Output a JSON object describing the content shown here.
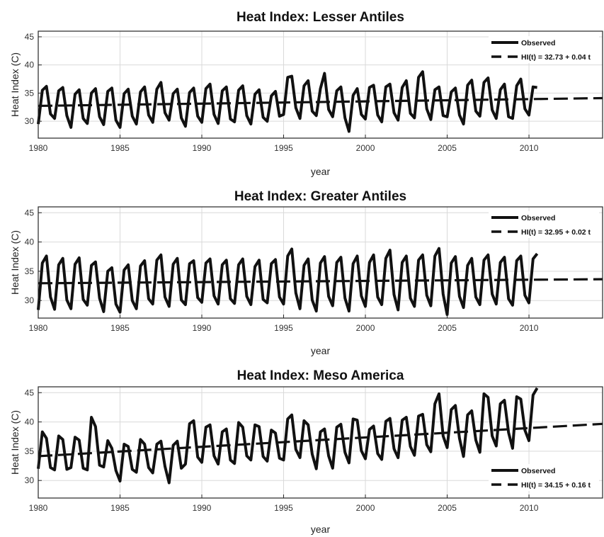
{
  "chart_data": [
    {
      "type": "line",
      "title": "Heat Index: Lesser Antiles",
      "xlabel": "year",
      "ylabel": "Heat Index (C)",
      "xlim": [
        1980,
        2014.5
      ],
      "ylim": [
        27,
        46
      ],
      "xticks": [
        1980,
        1985,
        1990,
        1995,
        2000,
        2005,
        2010
      ],
      "yticks": [
        30,
        35,
        40,
        45
      ],
      "grid": true,
      "legend_position": "top-right",
      "series": [
        {
          "name": "Observed",
          "style": "solid",
          "x_start": 1980,
          "step": 0.25,
          "values": [
            29.5,
            35.5,
            36.2,
            31.3,
            30.5,
            35.4,
            36.0,
            31.0,
            28.9,
            34.8,
            35.6,
            30.5,
            29.6,
            35.0,
            35.8,
            30.8,
            29.4,
            35.3,
            35.9,
            30.2,
            28.9,
            34.9,
            35.7,
            30.9,
            29.5,
            35.2,
            36.1,
            31.1,
            29.8,
            35.7,
            36.9,
            31.5,
            30.2,
            34.9,
            35.7,
            30.6,
            29.1,
            35.1,
            35.9,
            30.9,
            29.8,
            35.8,
            36.6,
            31.2,
            29.6,
            35.4,
            36.1,
            30.4,
            29.9,
            35.5,
            36.3,
            31.0,
            29.5,
            34.8,
            35.6,
            30.7,
            30.0,
            34.5,
            35.3,
            30.9,
            31.2,
            37.8,
            38.0,
            32.4,
            30.5,
            36.3,
            37.2,
            31.8,
            31.0,
            35.8,
            38.5,
            32.1,
            30.8,
            35.4,
            36.1,
            30.6,
            28.2,
            34.6,
            35.8,
            31.2,
            30.4,
            36.0,
            36.4,
            31.1,
            29.9,
            36.1,
            36.6,
            31.5,
            30.2,
            36.0,
            37.2,
            31.4,
            30.6,
            37.8,
            38.8,
            32.2,
            30.3,
            35.6,
            36.1,
            31.0,
            30.8,
            35.2,
            35.9,
            31.1,
            29.5,
            36.4,
            37.3,
            31.8,
            30.9,
            36.9,
            37.7,
            32.0,
            30.5,
            35.6,
            36.6,
            30.8,
            30.5,
            36.3,
            37.5,
            32.2,
            31.1,
            36.1,
            36.0
          ]
        },
        {
          "name": "HI(t) = 32.73 + 0.04 t",
          "style": "dashed",
          "x": [
            1980,
            2014.5
          ],
          "values": [
            32.73,
            34.11
          ]
        }
      ]
    },
    {
      "type": "line",
      "title": "Heat Index: Greater Antiles",
      "xlabel": "year",
      "ylabel": "Heat Index (C)",
      "xlim": [
        1980,
        2014.5
      ],
      "ylim": [
        27,
        46
      ],
      "xticks": [
        1980,
        1985,
        1990,
        1995,
        2000,
        2005,
        2010
      ],
      "yticks": [
        30,
        35,
        40,
        45
      ],
      "grid": true,
      "legend_position": "top-right",
      "series": [
        {
          "name": "Observed",
          "style": "solid",
          "x_start": 1980,
          "step": 0.25,
          "values": [
            28.4,
            36.4,
            37.6,
            30.6,
            28.5,
            36.1,
            37.2,
            30.1,
            28.6,
            36.2,
            37.3,
            30.2,
            29.2,
            36.0,
            36.6,
            30.4,
            28.1,
            35.0,
            35.6,
            29.4,
            28.0,
            35.2,
            36.1,
            30.0,
            28.6,
            35.9,
            36.8,
            30.3,
            29.4,
            36.9,
            37.8,
            30.6,
            29.0,
            36.2,
            37.2,
            30.1,
            29.3,
            36.3,
            36.8,
            30.5,
            29.7,
            36.4,
            37.1,
            30.8,
            29.4,
            36.1,
            36.9,
            30.3,
            29.5,
            36.1,
            37.1,
            30.7,
            29.3,
            35.8,
            36.9,
            30.2,
            29.6,
            36.3,
            37.0,
            30.6,
            29.4,
            37.6,
            38.8,
            31.3,
            28.6,
            36.0,
            37.1,
            30.1,
            28.2,
            36.4,
            37.5,
            30.7,
            29.1,
            36.5,
            37.4,
            30.4,
            28.2,
            36.3,
            37.6,
            30.8,
            29.0,
            36.5,
            37.8,
            30.6,
            29.3,
            37.2,
            38.6,
            31.0,
            28.4,
            36.5,
            37.6,
            30.4,
            29.0,
            36.9,
            37.8,
            30.9,
            29.1,
            37.6,
            38.9,
            31.1,
            27.6,
            36.4,
            37.5,
            30.7,
            28.8,
            36.0,
            37.2,
            30.6,
            29.3,
            36.9,
            37.8,
            31.1,
            29.4,
            36.5,
            37.4,
            30.3,
            29.2,
            36.8,
            37.6,
            30.9,
            29.6,
            37.1,
            38.0
          ]
        },
        {
          "name": "HI(t) = 32.95 + 0.02 t",
          "style": "dashed",
          "x": [
            1980,
            2014.5
          ],
          "values": [
            32.95,
            33.64
          ]
        }
      ]
    },
    {
      "type": "line",
      "title": "Heat Index: Meso America",
      "xlabel": "year",
      "ylabel": "Heat Index (C)",
      "xlim": [
        1980,
        2014.5
      ],
      "ylim": [
        27,
        46
      ],
      "xticks": [
        1980,
        1985,
        1990,
        1995,
        2000,
        2005,
        2010
      ],
      "yticks": [
        30,
        35,
        40,
        45
      ],
      "grid": true,
      "legend_position": "bottom-right",
      "series": [
        {
          "name": "Observed",
          "style": "solid",
          "x_start": 1980,
          "step": 0.25,
          "values": [
            32.0,
            38.3,
            37.2,
            32.2,
            31.8,
            37.6,
            37.0,
            31.9,
            32.2,
            37.4,
            36.9,
            32.1,
            31.8,
            40.8,
            39.2,
            32.6,
            32.3,
            36.8,
            35.5,
            31.7,
            29.9,
            36.2,
            35.8,
            31.9,
            31.4,
            37.0,
            36.2,
            32.2,
            31.3,
            36.2,
            36.7,
            32.4,
            29.6,
            36.0,
            36.7,
            32.1,
            32.8,
            39.7,
            40.2,
            34.0,
            33.1,
            39.1,
            39.5,
            34.2,
            32.8,
            38.3,
            38.8,
            33.5,
            32.9,
            39.9,
            39.1,
            34.2,
            33.5,
            39.5,
            39.2,
            34.1,
            33.3,
            38.6,
            38.1,
            33.8,
            33.5,
            40.5,
            41.2,
            35.3,
            33.9,
            40.2,
            39.5,
            34.5,
            32.0,
            38.3,
            38.8,
            34.2,
            32.1,
            39.1,
            39.6,
            34.8,
            33.0,
            40.5,
            40.3,
            35.1,
            33.7,
            38.7,
            39.3,
            34.6,
            33.6,
            40.1,
            40.6,
            35.4,
            33.9,
            40.3,
            40.8,
            35.8,
            34.3,
            41.0,
            41.3,
            36.1,
            34.9,
            43.1,
            44.8,
            37.6,
            35.6,
            42.1,
            42.8,
            37.2,
            34.1,
            41.2,
            41.9,
            36.9,
            34.8,
            44.8,
            44.2,
            37.6,
            35.9,
            43.1,
            43.7,
            38.2,
            35.5,
            44.3,
            43.9,
            38.6,
            36.8,
            44.6,
            45.8
          ]
        },
        {
          "name": "HI(t) = 34.15 + 0.16 t",
          "style": "dashed",
          "x": [
            1980,
            2014.5
          ],
          "values": [
            34.15,
            39.67
          ]
        }
      ]
    }
  ]
}
